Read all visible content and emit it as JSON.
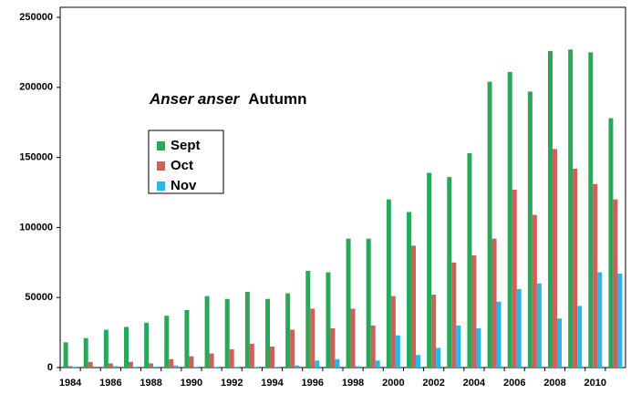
{
  "chart_data": {
    "type": "bar",
    "title": {
      "species": "Anser anser",
      "text": "Autumn"
    },
    "categories": [
      "1984",
      null,
      "1986",
      null,
      "1988",
      null,
      "1990",
      null,
      "1992",
      null,
      "1994",
      null,
      "1996",
      null,
      "1998",
      null,
      "2000",
      null,
      "2002",
      null,
      "2004",
      null,
      "2006",
      null,
      "2008",
      null,
      "2010",
      null
    ],
    "series": [
      {
        "name": "Sept",
        "color": "#2aa85a",
        "values": [
          18000,
          21000,
          27000,
          29000,
          32000,
          37000,
          41000,
          51000,
          49000,
          54000,
          49000,
          53000,
          69000,
          68000,
          92000,
          92000,
          120000,
          111000,
          139000,
          136000,
          153000,
          204000,
          211000,
          197000,
          226000,
          227000,
          225000,
          178000
        ]
      },
      {
        "name": "Oct",
        "color": "#c8645a",
        "values": [
          1000,
          4000,
          3000,
          4000,
          3000,
          6000,
          8000,
          10000,
          13000,
          17000,
          15000,
          27000,
          42000,
          28000,
          42000,
          30000,
          51000,
          87000,
          52000,
          75000,
          80000,
          92000,
          127000,
          109000,
          156000,
          142000,
          131000,
          120000
        ]
      },
      {
        "name": "Nov",
        "color": "#29b6e8",
        "values": [
          500,
          0,
          1000,
          500,
          500,
          1500,
          500,
          500,
          500,
          500,
          500,
          1500,
          5000,
          6000,
          1000,
          5000,
          23000,
          9000,
          14000,
          30000,
          28000,
          47000,
          56000,
          60000,
          35000,
          44000,
          68000,
          67000
        ]
      }
    ],
    "ylim": [
      0,
      250000
    ],
    "yticks": [
      0,
      50000,
      100000,
      150000,
      200000,
      250000
    ],
    "grid": false
  }
}
